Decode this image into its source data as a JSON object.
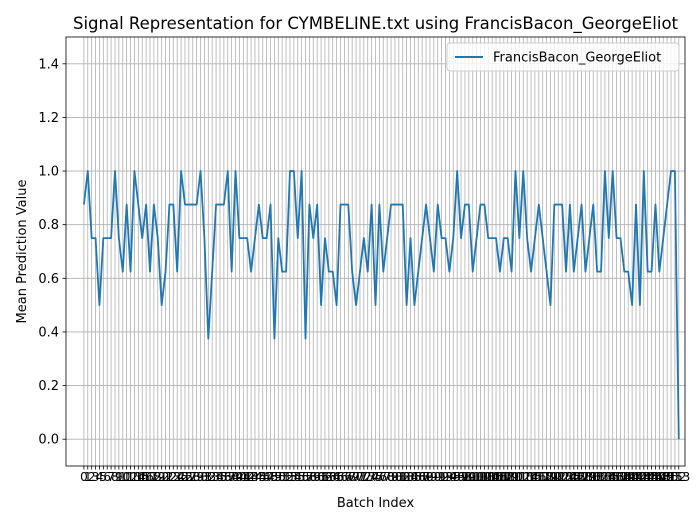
{
  "chart_data": {
    "type": "line",
    "title": "Signal Representation for CYMBELINE.txt using FrancisBacon_GeorgeEliot",
    "xlabel": "Batch Index",
    "ylabel": "Mean Prediction Value",
    "xlim": [
      -4.6,
      154.6
    ],
    "ylim": [
      -0.1,
      1.5
    ],
    "yticks": [
      0.0,
      0.2,
      0.4,
      0.6,
      0.8,
      1.0,
      1.2,
      1.4
    ],
    "ytick_labels": [
      "0.0",
      "0.2",
      "0.4",
      "0.6",
      "0.8",
      "1.0",
      "1.2",
      "1.4"
    ],
    "grid": true,
    "legend_position": "top-right",
    "series": [
      {
        "name": "FrancisBacon_GeorgeEliot",
        "color": "#1f77b4",
        "x_start": 0,
        "x_step": 1,
        "values": [
          0.875,
          1.0,
          0.75,
          0.75,
          0.5,
          0.75,
          0.75,
          0.75,
          1.0,
          0.75,
          0.625,
          0.875,
          0.625,
          1.0,
          0.875,
          0.75,
          0.875,
          0.625,
          0.875,
          0.75,
          0.5,
          0.625,
          0.875,
          0.875,
          0.625,
          1.0,
          0.875,
          0.875,
          0.875,
          0.875,
          1.0,
          0.75,
          0.375,
          0.625,
          0.875,
          0.875,
          0.875,
          1.0,
          0.625,
          1.0,
          0.75,
          0.75,
          0.75,
          0.625,
          0.75,
          0.875,
          0.75,
          0.75,
          0.875,
          0.375,
          0.75,
          0.625,
          0.625,
          1.0,
          1.0,
          0.75,
          1.0,
          0.375,
          0.875,
          0.75,
          0.875,
          0.5,
          0.75,
          0.625,
          0.625,
          0.5,
          0.875,
          0.875,
          0.875,
          0.625,
          0.5,
          0.625,
          0.75,
          0.625,
          0.875,
          0.5,
          0.875,
          0.625,
          0.75,
          0.875,
          0.875,
          0.875,
          0.875,
          0.5,
          0.75,
          0.5,
          0.625,
          0.75,
          0.875,
          0.75,
          0.625,
          0.875,
          0.75,
          0.75,
          0.625,
          0.75,
          1.0,
          0.75,
          0.875,
          0.875,
          0.625,
          0.75,
          0.875,
          0.875,
          0.75,
          0.75,
          0.75,
          0.625,
          0.75,
          0.75,
          0.625,
          1.0,
          0.75,
          1.0,
          0.75,
          0.625,
          0.75,
          0.875,
          0.75,
          0.625,
          0.5,
          0.875,
          0.875,
          0.875,
          0.625,
          0.875,
          0.625,
          0.75,
          0.875,
          0.625,
          0.75,
          0.875,
          0.625,
          0.625,
          1.0,
          0.75,
          1.0,
          0.75,
          0.75,
          0.625,
          0.625,
          0.5,
          0.875,
          0.5,
          1.0,
          0.625,
          0.625,
          0.875,
          0.625,
          0.75,
          0.875,
          1.0,
          1.0,
          0.0
        ]
      }
    ]
  }
}
